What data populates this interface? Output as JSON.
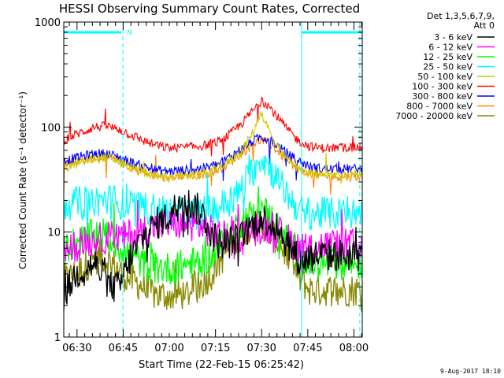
{
  "chart_data": {
    "type": "line",
    "title": "HESSI Observing Summary Count Rates, Corrected",
    "ylabel": "Corrected Count Rate (s⁻¹ detector⁻¹)",
    "xlabel": "Start Time (22-Feb-15 06:25:42)",
    "footer": "9-Aug-2017 18:10",
    "yscale": "log",
    "ylim": [
      1,
      1000
    ],
    "xlim_minutes": [
      0,
      97
    ],
    "y_ticks": [
      "1",
      "10",
      "100",
      "1000"
    ],
    "x_ticks": [
      {
        "label": "06:30",
        "minute": 4.3
      },
      {
        "label": "06:45",
        "minute": 19.3
      },
      {
        "label": "07:00",
        "minute": 34.3
      },
      {
        "label": "07:15",
        "minute": 49.3
      },
      {
        "label": "07:30",
        "minute": 64.3
      },
      {
        "label": "07:45",
        "minute": 79.3
      },
      {
        "label": "08:00",
        "minute": 94.3
      }
    ],
    "legend_header": [
      "Det 1,3,5,6,7,9,",
      "Att 0"
    ],
    "series": [
      {
        "name": "3 - 6 keV",
        "color": "#000000",
        "points": [
          [
            0,
            2.5
          ],
          [
            4,
            4
          ],
          [
            10,
            5
          ],
          [
            15,
            3
          ],
          [
            18,
            3
          ],
          [
            22,
            6
          ],
          [
            26,
            9
          ],
          [
            30,
            12
          ],
          [
            34,
            14
          ],
          [
            38,
            20
          ],
          [
            42,
            18
          ],
          [
            45,
            15
          ],
          [
            48,
            10
          ],
          [
            50,
            8
          ],
          [
            54,
            8
          ],
          [
            58,
            9
          ],
          [
            62,
            12
          ],
          [
            64,
            14
          ],
          [
            66,
            13
          ],
          [
            70,
            10
          ],
          [
            74,
            7
          ],
          [
            77,
            5
          ],
          [
            80,
            6
          ],
          [
            84,
            6
          ],
          [
            88,
            6
          ],
          [
            92,
            6
          ],
          [
            96,
            6
          ]
        ]
      },
      {
        "name": "6 - 12 keV",
        "color": "#ff00ff",
        "points": [
          [
            0,
            7
          ],
          [
            4,
            7.5
          ],
          [
            10,
            8.5
          ],
          [
            15,
            9
          ],
          [
            20,
            9
          ],
          [
            24,
            10
          ],
          [
            28,
            11
          ],
          [
            32,
            11.5
          ],
          [
            36,
            12
          ],
          [
            40,
            12
          ],
          [
            44,
            11.5
          ],
          [
            48,
            10
          ],
          [
            52,
            9
          ],
          [
            56,
            9
          ],
          [
            60,
            10
          ],
          [
            64,
            11
          ],
          [
            66,
            11
          ],
          [
            70,
            10
          ],
          [
            74,
            8
          ],
          [
            77,
            7
          ],
          [
            80,
            7
          ],
          [
            84,
            7.5
          ],
          [
            88,
            7.5
          ],
          [
            92,
            7.5
          ],
          [
            96,
            7.5
          ]
        ]
      },
      {
        "name": "12 - 25 keV",
        "color": "#00ff00",
        "points": [
          [
            0,
            7
          ],
          [
            4,
            8
          ],
          [
            8,
            9
          ],
          [
            12,
            10
          ],
          [
            16,
            8
          ],
          [
            19,
            7
          ],
          [
            22,
            6
          ],
          [
            26,
            5
          ],
          [
            30,
            4.5
          ],
          [
            36,
            4.5
          ],
          [
            40,
            5
          ],
          [
            44,
            5
          ],
          [
            48,
            6
          ],
          [
            52,
            8
          ],
          [
            56,
            11
          ],
          [
            60,
            14
          ],
          [
            64,
            16
          ],
          [
            66,
            15
          ],
          [
            70,
            11
          ],
          [
            74,
            7
          ],
          [
            77,
            5.5
          ],
          [
            80,
            5
          ],
          [
            84,
            5
          ],
          [
            88,
            5
          ],
          [
            92,
            5
          ],
          [
            96,
            5
          ]
        ]
      },
      {
        "name": "25 - 50 keV",
        "color": "#00ffff",
        "points": [
          [
            0,
            18
          ],
          [
            4,
            19
          ],
          [
            10,
            20
          ],
          [
            16,
            20
          ],
          [
            20,
            18
          ],
          [
            26,
            17
          ],
          [
            32,
            16
          ],
          [
            38,
            15
          ],
          [
            44,
            15
          ],
          [
            50,
            17
          ],
          [
            56,
            22
          ],
          [
            60,
            33
          ],
          [
            64,
            52
          ],
          [
            66,
            45
          ],
          [
            70,
            30
          ],
          [
            74,
            20
          ],
          [
            77,
            16
          ],
          [
            80,
            15
          ],
          [
            84,
            15
          ],
          [
            88,
            15
          ],
          [
            92,
            15
          ],
          [
            96,
            15
          ]
        ]
      },
      {
        "name": "50 - 100 keV",
        "color": "#cccc00",
        "points": [
          [
            0,
            40
          ],
          [
            4,
            44
          ],
          [
            10,
            50
          ],
          [
            14,
            52
          ],
          [
            18,
            47
          ],
          [
            22,
            41
          ],
          [
            26,
            37
          ],
          [
            30,
            34
          ],
          [
            34,
            33
          ],
          [
            40,
            34
          ],
          [
            46,
            36
          ],
          [
            50,
            40
          ],
          [
            54,
            48
          ],
          [
            58,
            60
          ],
          [
            62,
            95
          ],
          [
            64,
            140
          ],
          [
            66,
            105
          ],
          [
            68,
            75
          ],
          [
            72,
            50
          ],
          [
            76,
            40
          ],
          [
            80,
            36
          ],
          [
            84,
            35
          ],
          [
            88,
            35
          ],
          [
            92,
            36
          ],
          [
            96,
            36
          ]
        ]
      },
      {
        "name": "100 - 300 keV",
        "color": "#ff0000",
        "points": [
          [
            0,
            75
          ],
          [
            4,
            85
          ],
          [
            10,
            100
          ],
          [
            14,
            102
          ],
          [
            18,
            95
          ],
          [
            22,
            84
          ],
          [
            26,
            74
          ],
          [
            30,
            67
          ],
          [
            34,
            63
          ],
          [
            40,
            64
          ],
          [
            46,
            67
          ],
          [
            50,
            72
          ],
          [
            54,
            85
          ],
          [
            58,
            110
          ],
          [
            62,
            150
          ],
          [
            64,
            175
          ],
          [
            66,
            168
          ],
          [
            68,
            140
          ],
          [
            72,
            100
          ],
          [
            76,
            75
          ],
          [
            80,
            65
          ],
          [
            84,
            63
          ],
          [
            88,
            63
          ],
          [
            92,
            64
          ],
          [
            96,
            64
          ]
        ]
      },
      {
        "name": "300 - 800 keV",
        "color": "#0000ff",
        "points": [
          [
            0,
            48
          ],
          [
            4,
            51
          ],
          [
            10,
            56
          ],
          [
            14,
            56
          ],
          [
            18,
            52
          ],
          [
            22,
            46
          ],
          [
            26,
            42
          ],
          [
            30,
            39
          ],
          [
            34,
            38
          ],
          [
            40,
            39
          ],
          [
            46,
            41
          ],
          [
            50,
            44
          ],
          [
            54,
            52
          ],
          [
            58,
            63
          ],
          [
            62,
            75
          ],
          [
            64,
            80
          ],
          [
            66,
            78
          ],
          [
            68,
            72
          ],
          [
            72,
            58
          ],
          [
            76,
            48
          ],
          [
            80,
            42
          ],
          [
            84,
            40
          ],
          [
            88,
            40
          ],
          [
            92,
            40
          ],
          [
            96,
            40
          ]
        ]
      },
      {
        "name": "800 - 7000 keV",
        "color": "#ff8800",
        "points": [
          [
            0,
            44
          ],
          [
            4,
            47
          ],
          [
            10,
            51
          ],
          [
            14,
            51
          ],
          [
            18,
            47
          ],
          [
            22,
            41
          ],
          [
            26,
            37
          ],
          [
            30,
            34
          ],
          [
            34,
            33
          ],
          [
            40,
            34
          ],
          [
            46,
            36
          ],
          [
            50,
            39
          ],
          [
            54,
            46
          ],
          [
            58,
            57
          ],
          [
            62,
            70
          ],
          [
            64,
            75
          ],
          [
            66,
            72
          ],
          [
            68,
            65
          ],
          [
            72,
            50
          ],
          [
            76,
            40
          ],
          [
            80,
            36
          ],
          [
            84,
            34
          ],
          [
            88,
            34
          ],
          [
            92,
            34
          ],
          [
            96,
            34
          ]
        ]
      },
      {
        "name": "7000 - 20000 keV",
        "color": "#888800",
        "points": [
          [
            0,
            3.5
          ],
          [
            4,
            4
          ],
          [
            8,
            5
          ],
          [
            12,
            6
          ],
          [
            16,
            5
          ],
          [
            19,
            4
          ],
          [
            22,
            3.5
          ],
          [
            26,
            3
          ],
          [
            30,
            2.5
          ],
          [
            36,
            2.5
          ],
          [
            40,
            2.6
          ],
          [
            44,
            3
          ],
          [
            48,
            4
          ],
          [
            52,
            6
          ],
          [
            56,
            9
          ],
          [
            60,
            11
          ],
          [
            64,
            12
          ],
          [
            66,
            11
          ],
          [
            70,
            8
          ],
          [
            74,
            5
          ],
          [
            77,
            3.5
          ],
          [
            80,
            2.8
          ],
          [
            84,
            2.8
          ],
          [
            88,
            2.8
          ],
          [
            92,
            2.8
          ],
          [
            96,
            2.8
          ]
        ]
      }
    ],
    "eclipse_markers_minutes": [
      19.2,
      77.3,
      96.2
    ],
    "annotation": "N",
    "grid": false
  }
}
